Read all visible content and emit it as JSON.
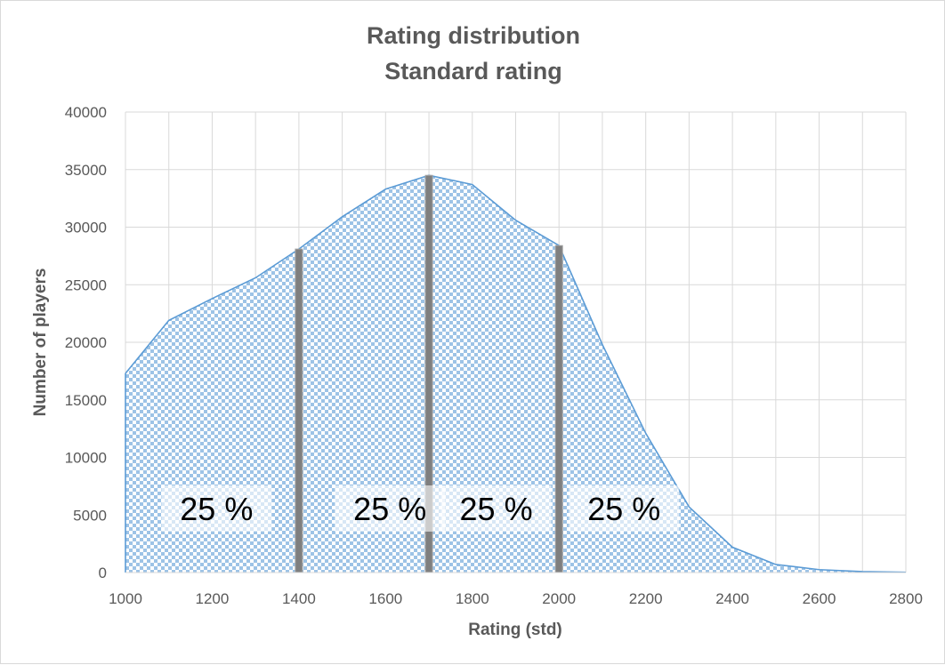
{
  "chart_data": {
    "type": "area",
    "title": "Rating distribution",
    "subtitle": "Standard rating",
    "xlabel": "Rating (std)",
    "ylabel": "Number of players",
    "xlim": [
      1000,
      2800
    ],
    "ylim": [
      0,
      40000
    ],
    "x_ticks": [
      1000,
      1200,
      1400,
      1600,
      1800,
      2000,
      2200,
      2400,
      2600,
      2800
    ],
    "y_ticks": [
      0,
      5000,
      10000,
      15000,
      20000,
      25000,
      30000,
      35000,
      40000
    ],
    "grid": true,
    "x_minor_step": 100,
    "x": [
      1000,
      1100,
      1200,
      1300,
      1400,
      1500,
      1600,
      1700,
      1800,
      1900,
      2000,
      2100,
      2200,
      2300,
      2400,
      2500,
      2600,
      2700,
      2800
    ],
    "y": [
      17300,
      21900,
      23800,
      25600,
      28100,
      30900,
      33300,
      34500,
      33700,
      30600,
      28400,
      19800,
      12100,
      5700,
      2200,
      700,
      250,
      80,
      20
    ],
    "quartile_lines": [
      1400,
      1700,
      2000
    ],
    "quartile_labels": [
      {
        "text": "25 %",
        "x_center": 1210
      },
      {
        "text": "25 %",
        "x_center": 1610
      },
      {
        "text": "25 %",
        "x_center": 1855
      },
      {
        "text": "25 %",
        "x_center": 2150
      }
    ],
    "colors": {
      "line": "#5b9bd5",
      "fill_pattern": "#9dc3e6",
      "quartile_line": "#7f7f7f",
      "grid": "#d9d9d9",
      "text": "#595959"
    }
  }
}
